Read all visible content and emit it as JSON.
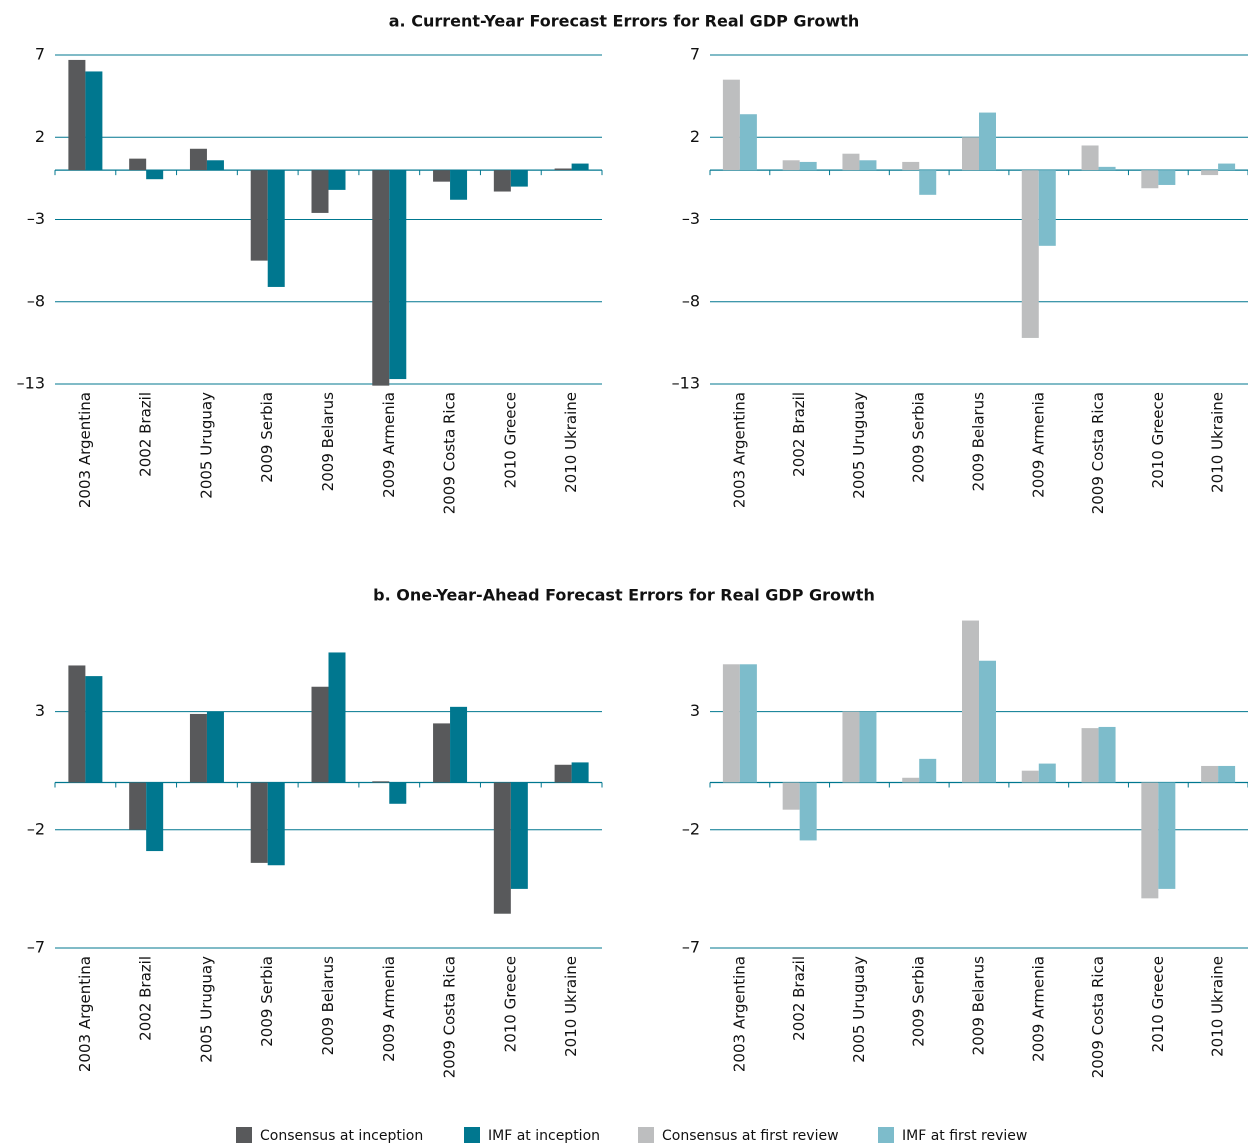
{
  "chart_data": [
    {
      "type": "bar",
      "title": "a. Current-Year Forecast Errors for Real GDP Growth",
      "categories": [
        "2003 Argentina",
        "2002 Brazil",
        "2005 Uruguay",
        "2009 Serbia",
        "2009 Belarus",
        "2009 Armenia",
        "2009 Costa Rica",
        "2010 Greece",
        "2010 Ukraine"
      ],
      "series": [
        {
          "name": "Consensus at inception",
          "color": "#58595b",
          "values": [
            6.7,
            0.7,
            1.3,
            -5.5,
            -2.6,
            -13.1,
            -0.7,
            -1.3,
            0.1
          ]
        },
        {
          "name": "IMF at inception",
          "color": "#00778f",
          "values": [
            6.0,
            -0.55,
            0.6,
            -7.1,
            -1.2,
            -12.7,
            -1.8,
            -1.0,
            0.4
          ]
        }
      ],
      "ylim": [
        -13,
        7
      ],
      "yticks": [
        7,
        2,
        {
          "value": -3,
          "label": "–3"
        },
        {
          "value": -8,
          "label": "–8"
        },
        {
          "value": -13,
          "label": "–13"
        }
      ],
      "grid": true
    },
    {
      "type": "bar",
      "categories": [
        "2003 Argentina",
        "2002 Brazil",
        "2005 Uruguay",
        "2009 Serbia",
        "2009 Belarus",
        "2009 Armenia",
        "2009 Costa Rica",
        "2010 Greece",
        "2010 Ukraine"
      ],
      "series": [
        {
          "name": "Consensus at first review",
          "color": "#bdbebf",
          "values": [
            5.5,
            0.6,
            1.0,
            0.5,
            2.0,
            -10.2,
            1.5,
            -1.1,
            -0.3
          ]
        },
        {
          "name": "IMF at first review",
          "color": "#7dbccb",
          "values": [
            3.4,
            0.5,
            0.6,
            -1.5,
            3.5,
            -4.6,
            0.2,
            -0.9,
            0.4
          ]
        }
      ],
      "ylim": [
        -13,
        7
      ],
      "yticks": [
        7,
        2,
        {
          "value": -3,
          "label": "–3"
        },
        {
          "value": -8,
          "label": "–8"
        },
        {
          "value": -13,
          "label": "–13"
        }
      ],
      "grid": true
    },
    {
      "type": "bar",
      "title": "b. One-Year-Ahead Forecast Errors for Real GDP Growth",
      "categories": [
        "2003 Argentina",
        "2002 Brazil",
        "2005 Uruguay",
        "2009 Serbia",
        "2009 Belarus",
        "2009 Armenia",
        "2009 Costa Rica",
        "2010 Greece",
        "2010 Ukraine"
      ],
      "series": [
        {
          "color": "#58595b",
          "values": [
            4.95,
            -2.0,
            2.9,
            -3.4,
            4.05,
            0.05,
            2.5,
            -5.55,
            0.75
          ]
        },
        {
          "color": "#00778f",
          "values": [
            4.5,
            -2.9,
            3.0,
            -3.5,
            5.5,
            -0.9,
            3.2,
            -4.5,
            0.85
          ]
        }
      ],
      "ylim": [
        -7,
        7
      ],
      "yticks": [
        3,
        {
          "value": -2,
          "label": "–2"
        },
        {
          "value": -7,
          "label": "–7"
        }
      ],
      "grid": true
    },
    {
      "type": "bar",
      "categories": [
        "2003 Argentina",
        "2002 Brazil",
        "2005 Uruguay",
        "2009 Serbia",
        "2009 Belarus",
        "2009 Armenia",
        "2009 Costa Rica",
        "2010 Greece",
        "2010 Ukraine"
      ],
      "series": [
        {
          "color": "#bdbebf",
          "values": [
            5.0,
            -1.15,
            3.0,
            0.2,
            6.85,
            0.5,
            2.3,
            -4.9,
            0.7
          ]
        },
        {
          "color": "#7dbccb",
          "values": [
            5.0,
            -2.45,
            3.0,
            1.0,
            5.15,
            0.8,
            2.35,
            -4.5,
            0.7
          ]
        }
      ],
      "ylim": [
        -7,
        7
      ],
      "yticks": [
        3,
        {
          "value": -2,
          "label": "–2"
        },
        {
          "value": -7,
          "label": "–7"
        }
      ],
      "grid": true
    }
  ]
}
